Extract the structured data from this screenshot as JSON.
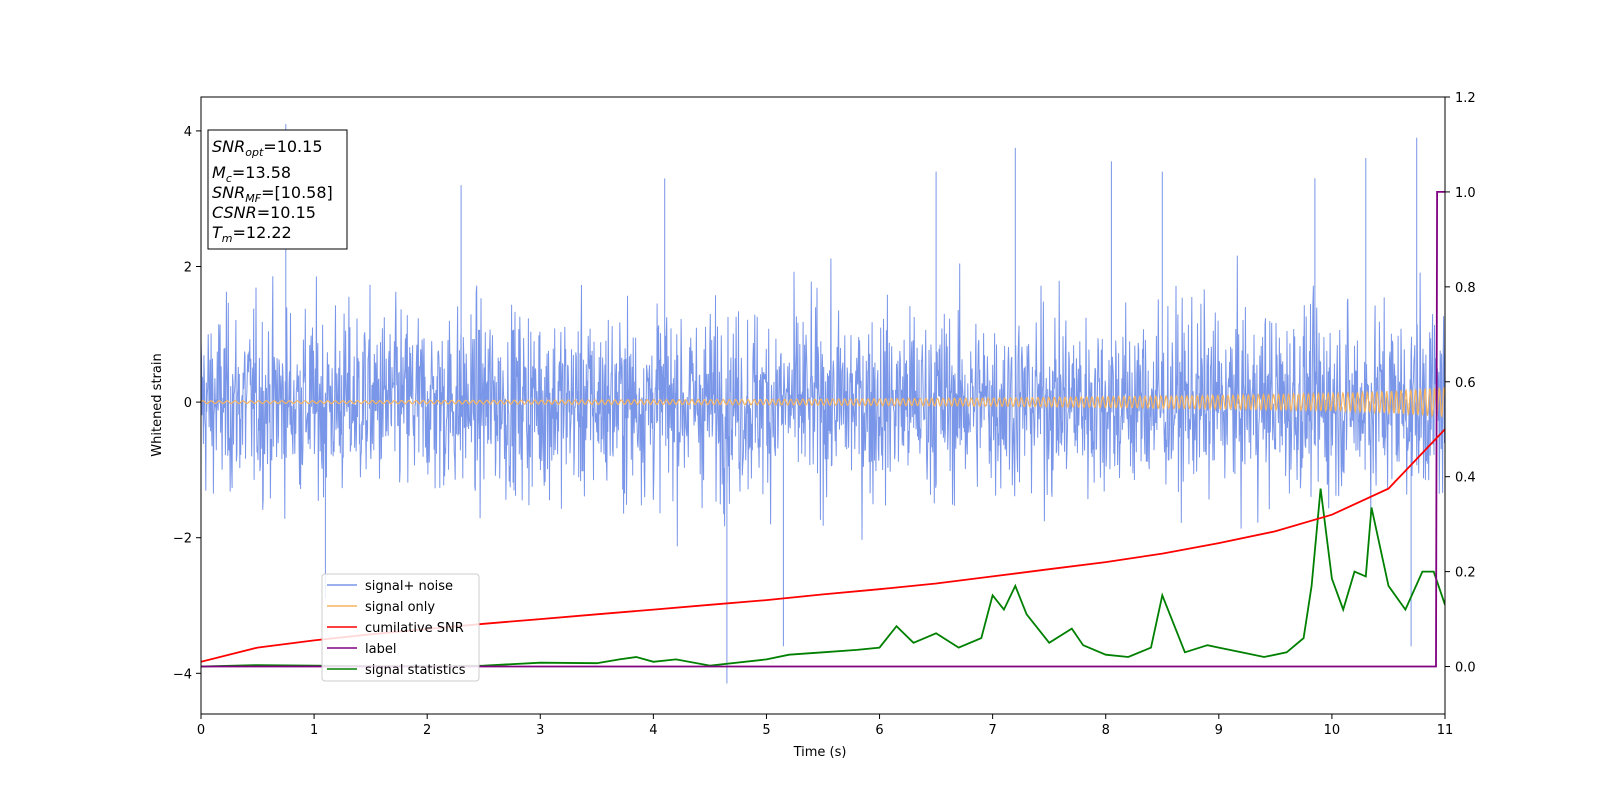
{
  "chart_data": {
    "type": "line",
    "title": "",
    "xlabel": "Time (s)",
    "ylabel": "Whitened strain",
    "xlim": [
      0,
      11
    ],
    "ylim_left": [
      -4.6,
      4.5
    ],
    "ylim_right": [
      -0.1,
      1.2
    ],
    "x_ticks": [
      0,
      1,
      2,
      3,
      4,
      5,
      6,
      7,
      8,
      9,
      10,
      11
    ],
    "y_left_ticks": [
      -4,
      -2,
      0,
      2,
      4
    ],
    "y_right_ticks": [
      "0.0",
      "0.2",
      "0.4",
      "0.6",
      "0.8",
      "1.0",
      "1.2"
    ],
    "grid": false,
    "legend_position": "lower-left",
    "colors": {
      "signal_noise": "#7a96e8",
      "signal_only": "#f5b462",
      "cumulative_snr": "#ff0000",
      "label": "#800080",
      "signal_statistics": "#008000"
    },
    "info_box": {
      "snr_opt_label": "SNR",
      "snr_opt_sub": "opt",
      "snr_opt_value": "=10.15",
      "mc_label": "M",
      "mc_sub": "c",
      "mc_value": "=13.58",
      "snr_mf_label": "SNR",
      "snr_mf_sub": "MF",
      "snr_mf_value": "=[10.58]",
      "csnr_label": "CSNR",
      "csnr_value": "=10.15",
      "tm_label": "T",
      "tm_sub": "m",
      "tm_value": "=12.22"
    },
    "series": [
      {
        "name": "signal+ noise",
        "axis": "left",
        "description": "noise band",
        "band_low": -2.0,
        "band_high": 2.0,
        "peak_x": [
          0.75,
          1.1,
          2.3,
          4.1,
          4.65,
          5.15,
          6.5,
          7.2,
          8.05,
          8.5,
          9.85,
          10.3,
          10.7,
          10.75
        ],
        "peak_y": [
          4.1,
          -2.9,
          3.2,
          3.3,
          -4.15,
          -3.6,
          3.4,
          3.75,
          3.55,
          3.4,
          3.3,
          3.6,
          -3.6,
          3.9
        ]
      },
      {
        "name": "signal only",
        "axis": "left",
        "x": [
          0,
          1,
          2,
          3,
          4,
          5,
          6,
          7,
          8,
          9,
          10,
          10.5,
          11
        ],
        "amplitude": [
          0.02,
          0.02,
          0.025,
          0.03,
          0.035,
          0.04,
          0.05,
          0.06,
          0.08,
          0.1,
          0.13,
          0.16,
          0.22
        ]
      },
      {
        "name": "cumilative SNR",
        "axis": "right",
        "x": [
          0,
          0.5,
          1,
          1.5,
          2,
          2.5,
          3,
          3.5,
          4,
          4.5,
          5,
          5.5,
          6,
          6.5,
          7,
          7.5,
          8,
          8.5,
          9,
          9.5,
          10,
          10.5,
          11
        ],
        "y": [
          0.01,
          0.04,
          0.055,
          0.068,
          0.079,
          0.09,
          0.1,
          0.11,
          0.12,
          0.13,
          0.14,
          0.152,
          0.163,
          0.175,
          0.19,
          0.205,
          0.22,
          0.238,
          0.26,
          0.285,
          0.32,
          0.375,
          0.5
        ]
      },
      {
        "name": "label",
        "axis": "right",
        "x": [
          0,
          10.92,
          10.93,
          11
        ],
        "y": [
          0,
          0,
          1.0,
          1.0
        ]
      },
      {
        "name": "signal statistics",
        "axis": "right",
        "x": [
          0,
          0.5,
          1,
          1.5,
          2,
          2.5,
          3,
          3.5,
          3.7,
          3.85,
          4,
          4.2,
          4.5,
          5,
          5.2,
          5.5,
          5.8,
          6,
          6.15,
          6.3,
          6.5,
          6.7,
          6.9,
          7,
          7.1,
          7.2,
          7.3,
          7.5,
          7.7,
          7.8,
          8,
          8.2,
          8.4,
          8.5,
          8.7,
          8.9,
          9,
          9.2,
          9.4,
          9.6,
          9.75,
          9.82,
          9.9,
          10,
          10.1,
          10.2,
          10.3,
          10.35,
          10.5,
          10.65,
          10.8,
          10.9,
          11
        ],
        "y": [
          0.0,
          0.003,
          0.002,
          0.001,
          0.001,
          0.002,
          0.008,
          0.007,
          0.015,
          0.02,
          0.01,
          0.015,
          0.002,
          0.015,
          0.025,
          0.03,
          0.035,
          0.04,
          0.085,
          0.05,
          0.07,
          0.04,
          0.06,
          0.15,
          0.12,
          0.17,
          0.11,
          0.05,
          0.08,
          0.045,
          0.025,
          0.02,
          0.04,
          0.15,
          0.03,
          0.045,
          0.04,
          0.03,
          0.02,
          0.03,
          0.06,
          0.17,
          0.375,
          0.185,
          0.12,
          0.2,
          0.19,
          0.335,
          0.17,
          0.12,
          0.2,
          0.2,
          0.13
        ]
      }
    ]
  }
}
